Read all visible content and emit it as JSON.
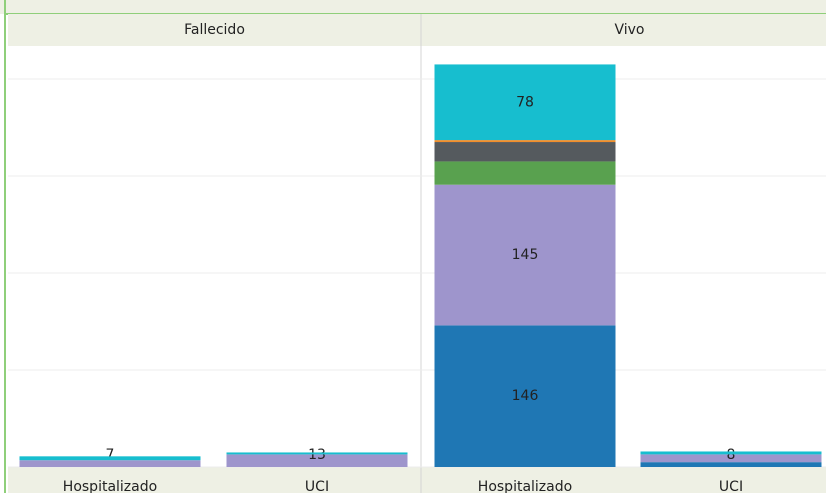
{
  "chart_data": {
    "type": "stacked_bar",
    "panels": [
      "Fallecido",
      "Vivo"
    ],
    "categories": [
      "Hospitalizado",
      "UCI",
      "Hospitalizado",
      "UCI"
    ],
    "series": [
      {
        "color": "#1f77b4",
        "values": [
          null,
          null,
          146,
          5
        ],
        "value_labels": [
          null,
          null,
          "146",
          null
        ]
      },
      {
        "color": "#9e95cc",
        "values": [
          7,
          13,
          145,
          8
        ],
        "value_labels": [
          "7",
          "13",
          "145",
          "8"
        ]
      },
      {
        "color": "#59a14f",
        "values": [
          null,
          null,
          24,
          null
        ],
        "value_labels": [
          null,
          null,
          null,
          null
        ]
      },
      {
        "color": "#555a5e",
        "values": [
          null,
          null,
          20,
          null
        ],
        "value_labels": [
          null,
          null,
          null,
          null
        ]
      },
      {
        "color": "#f28e2b",
        "values": [
          null,
          null,
          2,
          null
        ],
        "value_labels": [
          null,
          null,
          null,
          null
        ]
      },
      {
        "color": "#17becf",
        "values": [
          4,
          2,
          78,
          3
        ],
        "value_labels": [
          null,
          null,
          "78",
          null
        ]
      }
    ],
    "ylim": [
      0,
      434
    ],
    "yticks": [
      0,
      100,
      200,
      300,
      400
    ],
    "grid": true
  }
}
